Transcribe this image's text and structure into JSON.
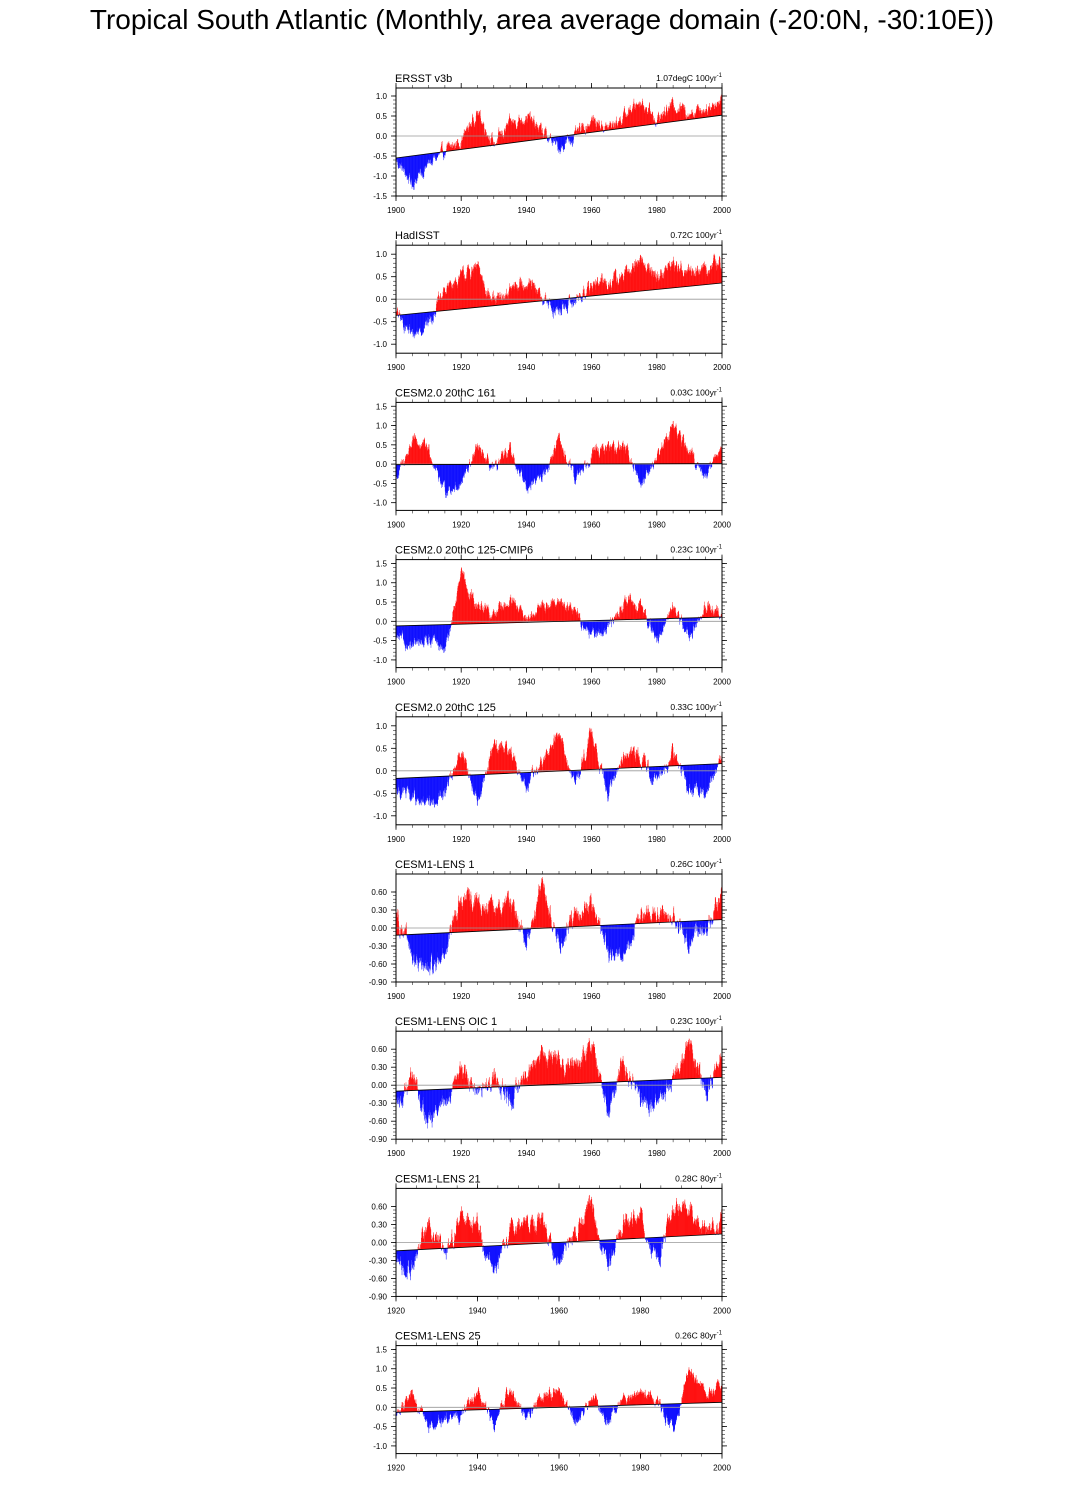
{
  "page": {
    "title": "Tropical South Atlantic (Monthly, area average domain (-20:0N, -30:10E))"
  },
  "style": {
    "positive_color": "#ff0000",
    "negative_color": "#0000ff",
    "trend_color": "#000000",
    "zero_line_color": "#999999"
  },
  "chart_data": [
    {
      "type": "bar",
      "title": "ERSST v3b",
      "trend_label": "1.07degC 100yr",
      "trend_sup": "-1",
      "xlim": [
        1900,
        2000
      ],
      "xticks": [
        "1900",
        "1920",
        "1940",
        "1960",
        "1980",
        "2000"
      ],
      "ylim": [
        -1.5,
        1.2
      ],
      "yticks": [
        "1.0",
        "0.5",
        "0.0",
        "-0.5",
        "-1.0",
        "-1.5"
      ],
      "ytick_values": [
        1.0,
        0.5,
        0.0,
        -0.5,
        -1.0,
        -1.5
      ],
      "trend": {
        "x": [
          1900,
          2000
        ],
        "y": [
          -0.55,
          0.52
        ]
      },
      "x_anchor": [
        1900,
        1905,
        1910,
        1915,
        1920,
        1925,
        1930,
        1935,
        1940,
        1945,
        1950,
        1955,
        1960,
        1965,
        1970,
        1975,
        1980,
        1985,
        1990,
        1995,
        2000
      ],
      "y_anchor": [
        -0.6,
        -1.2,
        -0.7,
        -0.4,
        -0.1,
        0.6,
        -0.2,
        0.3,
        0.5,
        0.1,
        -0.3,
        0.0,
        0.4,
        0.2,
        0.5,
        0.9,
        0.4,
        0.8,
        0.6,
        0.7,
        0.9
      ]
    },
    {
      "type": "bar",
      "title": "HadISST",
      "trend_label": "0.72C 100yr",
      "trend_sup": "-1",
      "xlim": [
        1900,
        2000
      ],
      "xticks": [
        "1900",
        "1920",
        "1940",
        "1960",
        "1980",
        "2000"
      ],
      "ylim": [
        -1.2,
        1.2
      ],
      "yticks": [
        "1.0",
        "0.5",
        "0.0",
        "-0.5",
        "-1.0"
      ],
      "ytick_values": [
        1.0,
        0.5,
        0.0,
        -0.5,
        -1.0
      ],
      "trend": {
        "x": [
          1900,
          2000
        ],
        "y": [
          -0.36,
          0.36
        ]
      },
      "x_anchor": [
        1900,
        1905,
        1910,
        1915,
        1920,
        1925,
        1930,
        1935,
        1940,
        1945,
        1950,
        1955,
        1960,
        1965,
        1970,
        1975,
        1980,
        1985,
        1990,
        1995,
        2000
      ],
      "y_anchor": [
        -0.3,
        -0.8,
        -0.5,
        0.2,
        0.5,
        0.7,
        -0.1,
        0.2,
        0.4,
        0.0,
        -0.3,
        0.0,
        0.3,
        0.4,
        0.5,
        0.9,
        0.5,
        0.8,
        0.6,
        0.7,
        0.8
      ]
    },
    {
      "type": "bar",
      "title": "CESM2.0 20thC 161",
      "trend_label": "0.03C 100yr",
      "trend_sup": "-1",
      "xlim": [
        1900,
        2000
      ],
      "xticks": [
        "1900",
        "1920",
        "1940",
        "1960",
        "1980",
        "2000"
      ],
      "ylim": [
        -1.2,
        1.6
      ],
      "yticks": [
        "1.5",
        "1.0",
        "0.5",
        "0.0",
        "-0.5",
        "-1.0"
      ],
      "ytick_values": [
        1.5,
        1.0,
        0.5,
        0.0,
        -0.5,
        -1.0
      ],
      "trend": {
        "x": [
          1900,
          2000
        ],
        "y": [
          -0.015,
          0.015
        ]
      },
      "x_anchor": [
        1900,
        1905,
        1910,
        1915,
        1920,
        1925,
        1930,
        1935,
        1940,
        1945,
        1950,
        1955,
        1960,
        1965,
        1970,
        1975,
        1980,
        1985,
        1990,
        1995,
        2000
      ],
      "y_anchor": [
        -0.4,
        0.6,
        0.4,
        -0.7,
        -0.5,
        0.4,
        -0.2,
        0.4,
        -0.6,
        -0.3,
        0.6,
        -0.4,
        0.3,
        0.4,
        0.5,
        -0.5,
        0.2,
        1.0,
        0.3,
        -0.3,
        0.5
      ]
    },
    {
      "type": "bar",
      "title": "CESM2.0 20thC 125-CMIP6",
      "trend_label": "0.23C 100yr",
      "trend_sup": "-1",
      "xlim": [
        1900,
        2000
      ],
      "xticks": [
        "1900",
        "1920",
        "1940",
        "1960",
        "1980",
        "2000"
      ],
      "ylim": [
        -1.2,
        1.6
      ],
      "yticks": [
        "1.5",
        "1.0",
        "0.5",
        "0.0",
        "-0.5",
        "-1.0"
      ],
      "ytick_values": [
        1.5,
        1.0,
        0.5,
        0.0,
        -0.5,
        -1.0
      ],
      "trend": {
        "x": [
          1900,
          2000
        ],
        "y": [
          -0.12,
          0.11
        ]
      },
      "x_anchor": [
        1900,
        1905,
        1910,
        1915,
        1920,
        1925,
        1930,
        1935,
        1940,
        1945,
        1950,
        1955,
        1960,
        1965,
        1970,
        1975,
        1980,
        1985,
        1990,
        1995,
        2000
      ],
      "y_anchor": [
        -0.4,
        -0.7,
        -0.4,
        -0.8,
        1.2,
        0.4,
        0.2,
        0.5,
        0.1,
        0.4,
        0.5,
        0.3,
        -0.4,
        -0.2,
        0.5,
        0.4,
        -0.5,
        0.4,
        -0.4,
        0.4,
        0.3
      ]
    },
    {
      "type": "bar",
      "title": "CESM2.0 20thC 125",
      "trend_label": "0.33C 100yr",
      "trend_sup": "-1",
      "xlim": [
        1900,
        2000
      ],
      "xticks": [
        "1900",
        "1920",
        "1940",
        "1960",
        "1980",
        "2000"
      ],
      "ylim": [
        -1.2,
        1.2
      ],
      "yticks": [
        "1.0",
        "0.5",
        "0.0",
        "-0.5",
        "-1.0"
      ],
      "ytick_values": [
        1.0,
        0.5,
        0.0,
        -0.5,
        -1.0
      ],
      "trend": {
        "x": [
          1900,
          2000
        ],
        "y": [
          -0.17,
          0.16
        ]
      },
      "x_anchor": [
        1900,
        1905,
        1910,
        1915,
        1920,
        1925,
        1930,
        1935,
        1940,
        1945,
        1950,
        1955,
        1960,
        1965,
        1970,
        1975,
        1980,
        1985,
        1990,
        1995,
        2000
      ],
      "y_anchor": [
        -0.4,
        -0.6,
        -0.8,
        -0.5,
        0.5,
        -0.7,
        0.6,
        0.5,
        -0.4,
        0.2,
        0.8,
        -0.3,
        0.9,
        -0.5,
        0.3,
        0.4,
        -0.3,
        0.4,
        -0.4,
        -0.5,
        0.3
      ]
    },
    {
      "type": "bar",
      "title": "CESM1-LENS 1",
      "trend_label": "0.26C 100yr",
      "trend_sup": "-1",
      "xlim": [
        1900,
        2000
      ],
      "xticks": [
        "1900",
        "1920",
        "1940",
        "1960",
        "1980",
        "2000"
      ],
      "ylim": [
        -0.9,
        0.9
      ],
      "yticks": [
        "0.60",
        "0.30",
        "0.00",
        "-0.30",
        "-0.60",
        "-0.90"
      ],
      "ytick_values": [
        0.6,
        0.3,
        0.0,
        -0.3,
        -0.6,
        -0.9
      ],
      "trend": {
        "x": [
          1900,
          2000
        ],
        "y": [
          -0.12,
          0.14
        ]
      },
      "x_anchor": [
        1900,
        1905,
        1910,
        1915,
        1920,
        1925,
        1930,
        1935,
        1940,
        1945,
        1950,
        1955,
        1960,
        1965,
        1970,
        1975,
        1980,
        1985,
        1990,
        1995,
        2000
      ],
      "y_anchor": [
        0.3,
        -0.5,
        -0.7,
        -0.4,
        0.5,
        0.4,
        0.3,
        0.5,
        -0.2,
        0.7,
        -0.3,
        0.3,
        0.4,
        -0.4,
        -0.5,
        0.2,
        0.3,
        0.2,
        -0.3,
        0.1,
        0.6
      ]
    },
    {
      "type": "bar",
      "title": "CESM1-LENS OIC 1",
      "trend_label": "0.23C 100yr",
      "trend_sup": "-1",
      "xlim": [
        1900,
        2000
      ],
      "xticks": [
        "1900",
        "1920",
        "1940",
        "1960",
        "1980",
        "2000"
      ],
      "ylim": [
        -0.9,
        0.9
      ],
      "yticks": [
        "0.60",
        "0.30",
        "0.00",
        "-0.30",
        "-0.60",
        "-0.90"
      ],
      "ytick_values": [
        0.6,
        0.3,
        0.0,
        -0.3,
        -0.6,
        -0.9
      ],
      "trend": {
        "x": [
          1900,
          2000
        ],
        "y": [
          -0.1,
          0.13
        ]
      },
      "x_anchor": [
        1900,
        1905,
        1910,
        1915,
        1920,
        1925,
        1930,
        1935,
        1940,
        1945,
        1950,
        1955,
        1960,
        1965,
        1970,
        1975,
        1980,
        1985,
        1990,
        1995,
        2000
      ],
      "y_anchor": [
        -0.4,
        0.2,
        -0.6,
        -0.3,
        0.3,
        -0.2,
        0.2,
        -0.3,
        0.2,
        0.6,
        0.4,
        0.3,
        0.7,
        -0.5,
        0.4,
        -0.3,
        -0.4,
        0.1,
        0.7,
        -0.2,
        0.6
      ]
    },
    {
      "type": "bar",
      "title": "CESM1-LENS 21",
      "trend_label": "0.28C 80yr",
      "trend_sup": "-1",
      "xlim": [
        1920,
        2000
      ],
      "xticks": [
        "1920",
        "1940",
        "1960",
        "1980",
        "2000"
      ],
      "ylim": [
        -0.9,
        0.9
      ],
      "yticks": [
        "0.60",
        "0.30",
        "0.00",
        "-0.30",
        "-0.60",
        "-0.90"
      ],
      "ytick_values": [
        0.6,
        0.3,
        0.0,
        -0.3,
        -0.6,
        -0.9
      ],
      "trend": {
        "x": [
          1920,
          2000
        ],
        "y": [
          -0.14,
          0.14
        ]
      },
      "x_anchor": [
        1920,
        1924,
        1928,
        1932,
        1936,
        1940,
        1944,
        1948,
        1952,
        1956,
        1960,
        1964,
        1968,
        1972,
        1976,
        1980,
        1984,
        1988,
        1992,
        1996,
        2000
      ],
      "y_anchor": [
        -0.3,
        -0.5,
        0.4,
        -0.3,
        0.5,
        0.3,
        -0.5,
        0.2,
        0.4,
        0.3,
        -0.3,
        0.2,
        0.6,
        -0.4,
        0.3,
        0.5,
        -0.3,
        0.5,
        0.6,
        0.2,
        0.4
      ]
    },
    {
      "type": "bar",
      "title": "CESM1-LENS 25",
      "trend_label": "0.26C 80yr",
      "trend_sup": "-1",
      "xlim": [
        1920,
        2000
      ],
      "xticks": [
        "1920",
        "1940",
        "1960",
        "1980",
        "2000"
      ],
      "ylim": [
        -1.2,
        1.6
      ],
      "yticks": [
        "1.5",
        "1.0",
        "0.5",
        "0.0",
        "-0.5",
        "-1.0"
      ],
      "ytick_values": [
        1.5,
        1.0,
        0.5,
        0.0,
        -0.5,
        -1.0
      ],
      "trend": {
        "x": [
          1920,
          2000
        ],
        "y": [
          -0.13,
          0.13
        ]
      },
      "x_anchor": [
        1920,
        1924,
        1928,
        1932,
        1936,
        1940,
        1944,
        1948,
        1952,
        1956,
        1960,
        1964,
        1968,
        1972,
        1976,
        1980,
        1984,
        1988,
        1992,
        1996,
        2000
      ],
      "y_anchor": [
        -0.2,
        0.4,
        -0.6,
        -0.3,
        -0.2,
        0.4,
        -0.5,
        0.5,
        -0.3,
        0.3,
        0.4,
        -0.4,
        0.3,
        -0.3,
        0.2,
        0.4,
        0.2,
        -0.6,
        1.1,
        0.3,
        0.5
      ]
    }
  ]
}
